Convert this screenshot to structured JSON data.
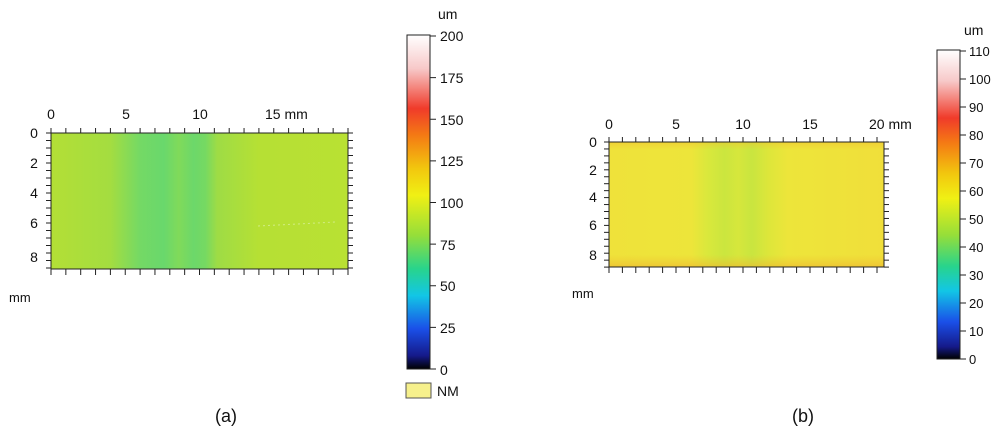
{
  "panels": [
    {
      "caption": "(a)",
      "x_ticks": [
        "0",
        "5",
        "10",
        "15 mm"
      ],
      "y_ticks": [
        "0",
        "2",
        "4",
        "6",
        "8"
      ],
      "y_unit": "mm",
      "colorbar": {
        "unit": "um",
        "ticks": [
          "200",
          "175",
          "150",
          "125",
          "100",
          "75",
          "50",
          "25",
          "0"
        ]
      },
      "legend_label": "NM"
    },
    {
      "caption": "(b)",
      "x_ticks": [
        "0",
        "5",
        "10",
        "15",
        "20 mm"
      ],
      "y_ticks": [
        "0",
        "2",
        "4",
        "6",
        "8"
      ],
      "y_unit": "mm",
      "colorbar": {
        "unit": "um",
        "ticks": [
          "110",
          "100",
          "90",
          "80",
          "70",
          "60",
          "50",
          "40",
          "30",
          "20",
          "10",
          "0"
        ]
      }
    }
  ],
  "colors": {
    "panel_a_surface": "#b5e033",
    "panel_a_groove": "#6fd968",
    "panel_b_surface": "#ede63c",
    "panel_b_groove": "#cfe53a",
    "legend_swatch": "#f6f08c"
  }
}
